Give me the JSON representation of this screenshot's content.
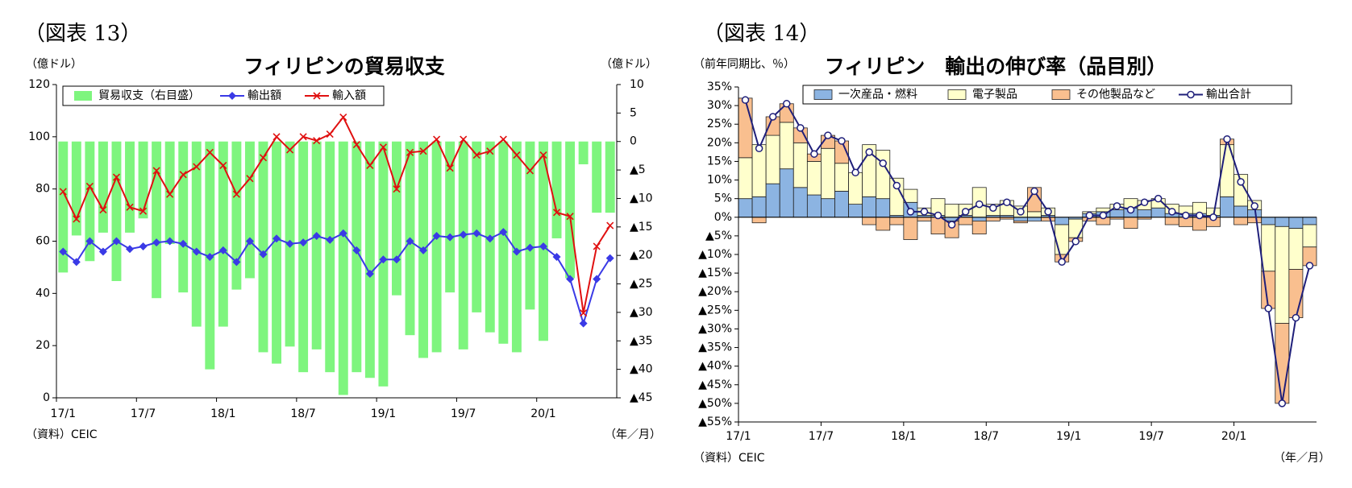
{
  "chart_data": [
    {
      "type": "combo",
      "figure_label": "（図表 13）",
      "title": "フィリピンの貿易収支",
      "ylabel": "（億ドル）",
      "y2label": "（億ドル）",
      "xlabel": "（年／月）",
      "source": "（資料）CEIC",
      "legend": "upper left",
      "categories": [
        "17/1",
        null,
        null,
        null,
        null,
        null,
        "17/7",
        null,
        null,
        null,
        null,
        null,
        "18/1",
        null,
        null,
        null,
        null,
        null,
        "18/7",
        null,
        null,
        null,
        null,
        null,
        "19/1",
        null,
        null,
        null,
        null,
        null,
        "19/7",
        null,
        null,
        null,
        null,
        null,
        "20/1",
        null,
        null,
        null,
        null,
        null
      ],
      "ylim": [
        0,
        120
      ],
      "yticks": [
        0,
        20,
        40,
        60,
        80,
        100,
        120
      ],
      "y2lim": [
        -45,
        10
      ],
      "y2ticks": [
        10,
        5,
        0,
        {
          "value": -5,
          "label": "▲5"
        },
        {
          "value": -10,
          "label": "▲10"
        },
        {
          "value": -15,
          "label": "▲15"
        },
        {
          "value": -20,
          "label": "▲20"
        },
        {
          "value": -25,
          "label": "▲25"
        },
        {
          "value": -30,
          "label": "▲30"
        },
        {
          "value": -35,
          "label": "▲35"
        },
        {
          "value": -40,
          "label": "▲40"
        },
        {
          "value": -45,
          "label": "▲45"
        }
      ],
      "series": [
        {
          "name": "貿易収支（右目盛）",
          "kind": "bar",
          "axis": "y2",
          "color": "#7ef57e",
          "values": [
            -23,
            -16.5,
            -21,
            -16,
            -24.5,
            -16,
            -13.5,
            -27.5,
            -18,
            -26.5,
            -32.5,
            -40,
            -32.5,
            -26,
            -24,
            -37,
            -39,
            -36,
            -40.5,
            -36.5,
            -40.5,
            -44.5,
            -40.5,
            -41.5,
            -43,
            -27,
            -34,
            -38,
            -37,
            -26.5,
            -36.5,
            -30,
            -33.5,
            -35.5,
            -37,
            -29.5,
            -35,
            -17,
            -24,
            -4,
            -12.5,
            -12.5
          ]
        },
        {
          "name": "輸出額",
          "kind": "line",
          "color": "#3a3ae6",
          "marker": "diamond",
          "values": [
            56,
            52,
            60,
            56,
            60,
            57,
            58,
            59.5,
            60,
            59,
            56,
            54,
            56.5,
            52,
            60,
            55,
            61,
            59,
            59.5,
            62,
            60.5,
            63,
            56.5,
            47.5,
            53,
            53,
            60,
            56.5,
            62,
            61.5,
            62.5,
            63,
            61,
            63.5,
            56,
            57.5,
            58,
            54,
            45.5,
            28.5,
            45.5,
            53.5
          ]
        },
        {
          "name": "輸入額",
          "kind": "line",
          "color": "#e01010",
          "marker": "x",
          "values": [
            79,
            68.5,
            81,
            72,
            84.5,
            73,
            71.5,
            87,
            78,
            85.5,
            88.5,
            94,
            89,
            78,
            84,
            92,
            100,
            95,
            100,
            98.5,
            101,
            107.5,
            97,
            89,
            96,
            80,
            94,
            94.5,
            99,
            88,
            99,
            93,
            94.5,
            99,
            93,
            87,
            93,
            71,
            69.5,
            32.5,
            58,
            66
          ]
        }
      ]
    },
    {
      "type": "stacked_combo",
      "figure_label": "（図表 14）",
      "title": "フィリピン　輸出の伸び率（品目別）",
      "ylabel": "（前年同期比、％）",
      "xlabel": "（年／月）",
      "source": "（資料）CEIC",
      "legend": "upper center",
      "categories": [
        "17/1",
        null,
        null,
        null,
        null,
        null,
        "17/7",
        null,
        null,
        null,
        null,
        null,
        "18/1",
        null,
        null,
        null,
        null,
        null,
        "18/7",
        null,
        null,
        null,
        null,
        null,
        "19/1",
        null,
        null,
        null,
        null,
        null,
        "19/7",
        null,
        null,
        null,
        null,
        null,
        "20/1",
        null,
        null,
        null,
        null,
        null
      ],
      "ylim": [
        -55,
        35
      ],
      "yticks": [
        {
          "value": 35,
          "label": "35%"
        },
        {
          "value": 30,
          "label": "30%"
        },
        {
          "value": 25,
          "label": "25%"
        },
        {
          "value": 20,
          "label": "20%"
        },
        {
          "value": 15,
          "label": "15%"
        },
        {
          "value": 10,
          "label": "10%"
        },
        {
          "value": 5,
          "label": "5%"
        },
        {
          "value": 0,
          "label": "0%"
        },
        {
          "value": -5,
          "label": "▲5%"
        },
        {
          "value": -10,
          "label": "▲10%"
        },
        {
          "value": -15,
          "label": "▲15%"
        },
        {
          "value": -20,
          "label": "▲20%"
        },
        {
          "value": -25,
          "label": "▲25%"
        },
        {
          "value": -30,
          "label": "▲30%"
        },
        {
          "value": -35,
          "label": "▲35%"
        },
        {
          "value": -40,
          "label": "▲40%"
        },
        {
          "value": -45,
          "label": "▲45%"
        },
        {
          "value": -50,
          "label": "▲50%"
        },
        {
          "value": -55,
          "label": "▲55%"
        }
      ],
      "series": [
        {
          "name": "一次産品・燃料",
          "kind": "bar",
          "color": "#8cb4e2",
          "values": [
            5,
            5.5,
            9,
            13,
            8,
            6,
            5,
            7,
            3.5,
            5.5,
            5,
            0.5,
            4,
            0.5,
            0.5,
            -1,
            0.5,
            -1,
            0.5,
            0.5,
            -1,
            -1,
            0.5,
            -2,
            -0.5,
            1,
            1.5,
            2,
            2.5,
            2,
            2.5,
            1,
            1,
            1,
            0.5,
            5.5,
            3,
            2,
            -2,
            -2.5,
            -3,
            -2
          ]
        },
        {
          "name": "電子製品",
          "kind": "bar",
          "color": "#ffffcc",
          "values": [
            11,
            14,
            13,
            12.5,
            12,
            9,
            13.5,
            7.5,
            8.5,
            14,
            13,
            10,
            3.5,
            2,
            4.5,
            3.5,
            3,
            8,
            3,
            4,
            3,
            1.5,
            2,
            -8,
            -5,
            0.5,
            1,
            1.5,
            2.5,
            2.5,
            2.5,
            2.5,
            2,
            3,
            2,
            14,
            8.5,
            2.5,
            -12.5,
            -26,
            -11,
            -6
          ]
        },
        {
          "name": "その他製品など",
          "kind": "bar",
          "color": "#f9bf8f",
          "values": [
            16,
            -1.5,
            5,
            5,
            4,
            2,
            3.5,
            6,
            0,
            -2,
            -3.5,
            -2,
            -6,
            -1,
            -4.5,
            -4.5,
            -2,
            -3.5,
            -1,
            -0.5,
            -0.5,
            6.5,
            -1,
            -2,
            -1,
            -1,
            -2,
            -0.5,
            -3,
            -0.5,
            0,
            -2,
            -2.5,
            -3.5,
            -2.5,
            1.5,
            -2,
            -1.5,
            -10,
            -21.5,
            -13,
            -5
          ]
        },
        {
          "name": "輸出合計",
          "kind": "line",
          "color": "#1f1f7a",
          "marker": "circle",
          "values": [
            31.5,
            18.5,
            27,
            30.5,
            24,
            17,
            22,
            20.5,
            12,
            17.5,
            14.5,
            8.5,
            1.5,
            1.5,
            0.5,
            -2,
            1.5,
            3.5,
            2.5,
            4,
            1.5,
            7,
            1.5,
            -12,
            -6.5,
            0.5,
            0.5,
            3,
            2,
            4,
            5,
            1.5,
            0.5,
            0.5,
            0,
            21,
            9.5,
            3,
            -24.5,
            -50,
            -27,
            -13
          ]
        }
      ]
    }
  ]
}
